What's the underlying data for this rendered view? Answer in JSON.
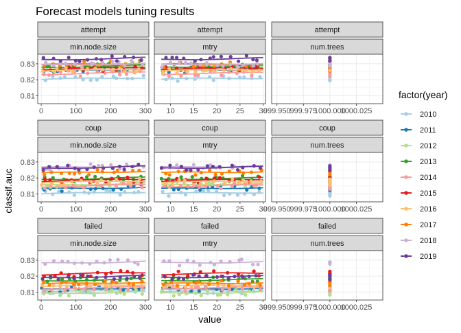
{
  "chart_data": {
    "type": "scatter",
    "title": "Forecast models tuning results",
    "xlabel": "value",
    "ylabel": "classif.auc",
    "legend_title": "factor(year)",
    "legend_position": "right",
    "grid": true,
    "ylim": [
      0.805,
      0.836
    ],
    "yticks": [
      0.81,
      0.82,
      0.83
    ],
    "series": [
      {
        "name": "2010",
        "color": "#a6cee3"
      },
      {
        "name": "2011",
        "color": "#1f78b4"
      },
      {
        "name": "2012",
        "color": "#b2df8a"
      },
      {
        "name": "2013",
        "color": "#33a02c"
      },
      {
        "name": "2014",
        "color": "#fb9a99"
      },
      {
        "name": "2015",
        "color": "#e31a1c"
      },
      {
        "name": "2016",
        "color": "#fdbf6f"
      },
      {
        "name": "2017",
        "color": "#ff7f00"
      },
      {
        "name": "2018",
        "color": "#cab2d6"
      },
      {
        "name": "2019",
        "color": "#6a3d9a"
      }
    ],
    "rows": [
      "attempt",
      "coup",
      "failed"
    ],
    "columns": [
      {
        "param": "min.node.size",
        "xlim": [
          -10,
          310
        ],
        "xticks": [
          0,
          100,
          200,
          300
        ],
        "xtick_labels": [
          "0",
          "100",
          "200",
          "300"
        ],
        "x_range": [
          1,
          300
        ]
      },
      {
        "param": "mtry",
        "xlim": [
          6.5,
          30.5
        ],
        "xticks": [
          10,
          15,
          20,
          25,
          30
        ],
        "xtick_labels": [
          "10",
          "15",
          "20",
          "25",
          "30"
        ],
        "x_range": [
          8,
          30
        ]
      },
      {
        "param": "num.trees",
        "xlim": [
          999.945,
          1000.05
        ],
        "xticks": [
          999.95,
          999.975,
          1000.0,
          1000.025
        ],
        "xtick_labels": [
          "999.950",
          "999.975",
          "1000.000",
          "1000.025"
        ],
        "x_range": [
          1000,
          1000
        ]
      }
    ],
    "year_levels": {
      "attempt": [
        0.8207,
        0.8262,
        0.8277,
        0.8283,
        0.824,
        0.827,
        0.826,
        0.8298,
        0.8295,
        0.833
      ],
      "coup": [
        0.8105,
        0.8135,
        0.816,
        0.8195,
        0.815,
        0.8185,
        0.8175,
        0.8235,
        0.827,
        0.8265
      ],
      "failed": [
        0.8105,
        0.812,
        0.8095,
        0.8175,
        0.8125,
        0.8215,
        0.814,
        0.8155,
        0.8285,
        0.8195
      ]
    }
  }
}
